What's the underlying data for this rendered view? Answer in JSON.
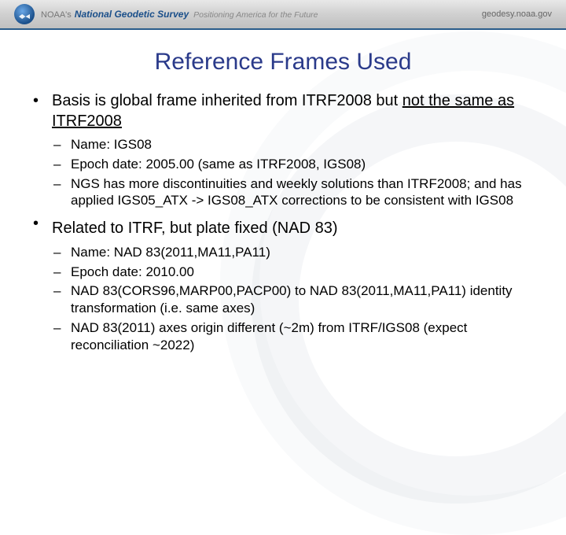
{
  "header": {
    "noaa_label": "NOAA's",
    "ngs_label": "National Geodetic Survey",
    "tagline": "Positioning America for the Future",
    "site": "geodesy.noaa.gov"
  },
  "title": "Reference Frames Used",
  "bullets": [
    {
      "text_pre": "Basis is global frame inherited from ITRF2008 but ",
      "text_ul": "not the same as ITRF2008",
      "sub": [
        "Name: IGS08",
        "Epoch date: 2005.00 (same as ITRF2008, IGS08)",
        "NGS has more discontinuities and weekly solutions than ITRF2008; and has applied IGS05_ATX -> IGS08_ATX corrections to be consistent with IGS08"
      ]
    },
    {
      "text_pre": "Related to ITRF, but plate fixed (NAD 83)",
      "text_ul": "",
      "sub": [
        "Name: NAD 83(2011,MA11,PA11)",
        "Epoch date: 2010.00",
        "NAD 83(CORS96,MARP00,PACP00) to NAD 83(2011,MA11,PA11) identity transformation (i.e. same axes)",
        "NAD 83(2011) axes origin different (~2m) from ITRF/IGS08 (expect  reconciliation ~2022)"
      ]
    }
  ],
  "colors": {
    "title": "#2a3a8a",
    "header_border": "#2a5c8a",
    "background": "#ffffff"
  }
}
